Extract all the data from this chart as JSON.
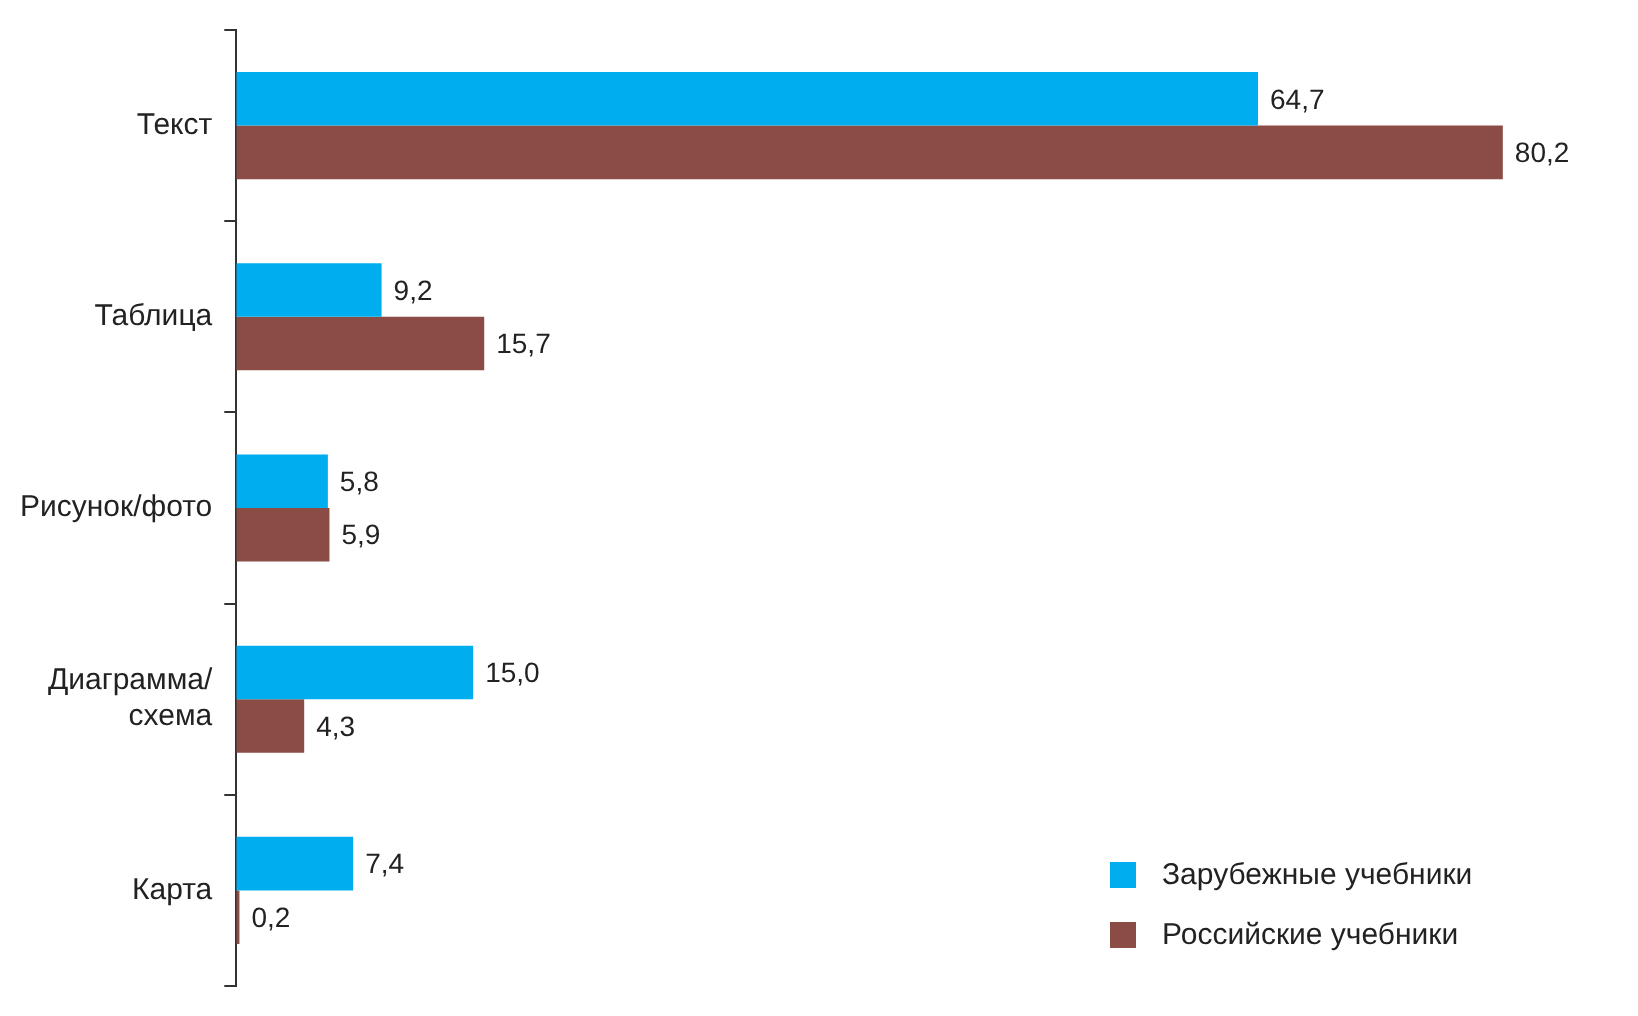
{
  "chart_data": {
    "type": "bar",
    "orientation": "horizontal",
    "categories": [
      "Текст",
      "Таблица",
      "Рисунок/фото",
      "Диаграмма/\nсхема",
      "Карта"
    ],
    "series": [
      {
        "name": "Зарубежные учебники",
        "color": "#00aeef",
        "values": [
          64.7,
          9.2,
          5.8,
          15.0,
          7.4
        ],
        "value_labels": [
          "64,7",
          "9,2",
          "5,8",
          "15,0",
          "7,4"
        ]
      },
      {
        "name": "Российские учебники",
        "color": "#8b4c46",
        "values": [
          80.2,
          15.7,
          5.9,
          4.3,
          0.2
        ],
        "value_labels": [
          "80,2",
          "15,7",
          "5,9",
          "4,3",
          "0,2"
        ]
      }
    ],
    "legend": "bottom right"
  }
}
